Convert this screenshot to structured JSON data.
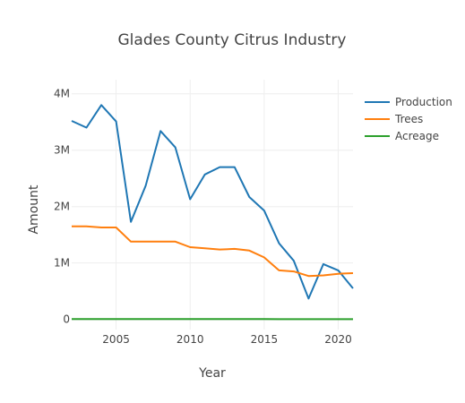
{
  "chart_data": {
    "type": "line",
    "title": "Glades County Citrus Industry",
    "xlabel": "Year",
    "ylabel": "Amount",
    "x": [
      2002,
      2003,
      2004,
      2005,
      2006,
      2007,
      2008,
      2009,
      2010,
      2011,
      2012,
      2013,
      2014,
      2015,
      2016,
      2017,
      2018,
      2019,
      2020,
      2021
    ],
    "xlim": [
      2002,
      2021
    ],
    "ylim": [
      -0.18,
      4.25
    ],
    "x_ticks": [
      2005,
      2010,
      2015,
      2020
    ],
    "x_tick_labels": [
      "2005",
      "2010",
      "2015",
      "2020"
    ],
    "y_ticks": [
      0,
      1,
      2,
      3,
      4
    ],
    "y_tick_labels": [
      "0",
      "1M",
      "2M",
      "3M",
      "4M"
    ],
    "y_unit": "millions",
    "grid": true,
    "legend": "top-right",
    "series": [
      {
        "name": "Production",
        "color": "#1f77b4",
        "values": [
          3.52,
          3.4,
          3.8,
          3.51,
          1.73,
          2.37,
          3.34,
          3.05,
          2.13,
          2.57,
          2.7,
          2.7,
          2.17,
          1.93,
          1.35,
          1.04,
          0.37,
          0.98,
          0.87,
          0.55
        ]
      },
      {
        "name": "Trees",
        "color": "#ff7f0e",
        "values": [
          1.65,
          1.65,
          1.63,
          1.63,
          1.38,
          1.38,
          1.38,
          1.38,
          1.28,
          1.26,
          1.24,
          1.25,
          1.22,
          1.1,
          0.87,
          0.85,
          0.77,
          0.78,
          0.81,
          0.82
        ]
      },
      {
        "name": "Acreage",
        "color": "#2ca02c",
        "values": [
          0.006,
          0.006,
          0.006,
          0.006,
          0.005,
          0.005,
          0.005,
          0.005,
          0.005,
          0.005,
          0.005,
          0.005,
          0.005,
          0.005,
          0.004,
          0.004,
          0.004,
          0.004,
          0.004,
          0.004
        ]
      }
    ]
  }
}
